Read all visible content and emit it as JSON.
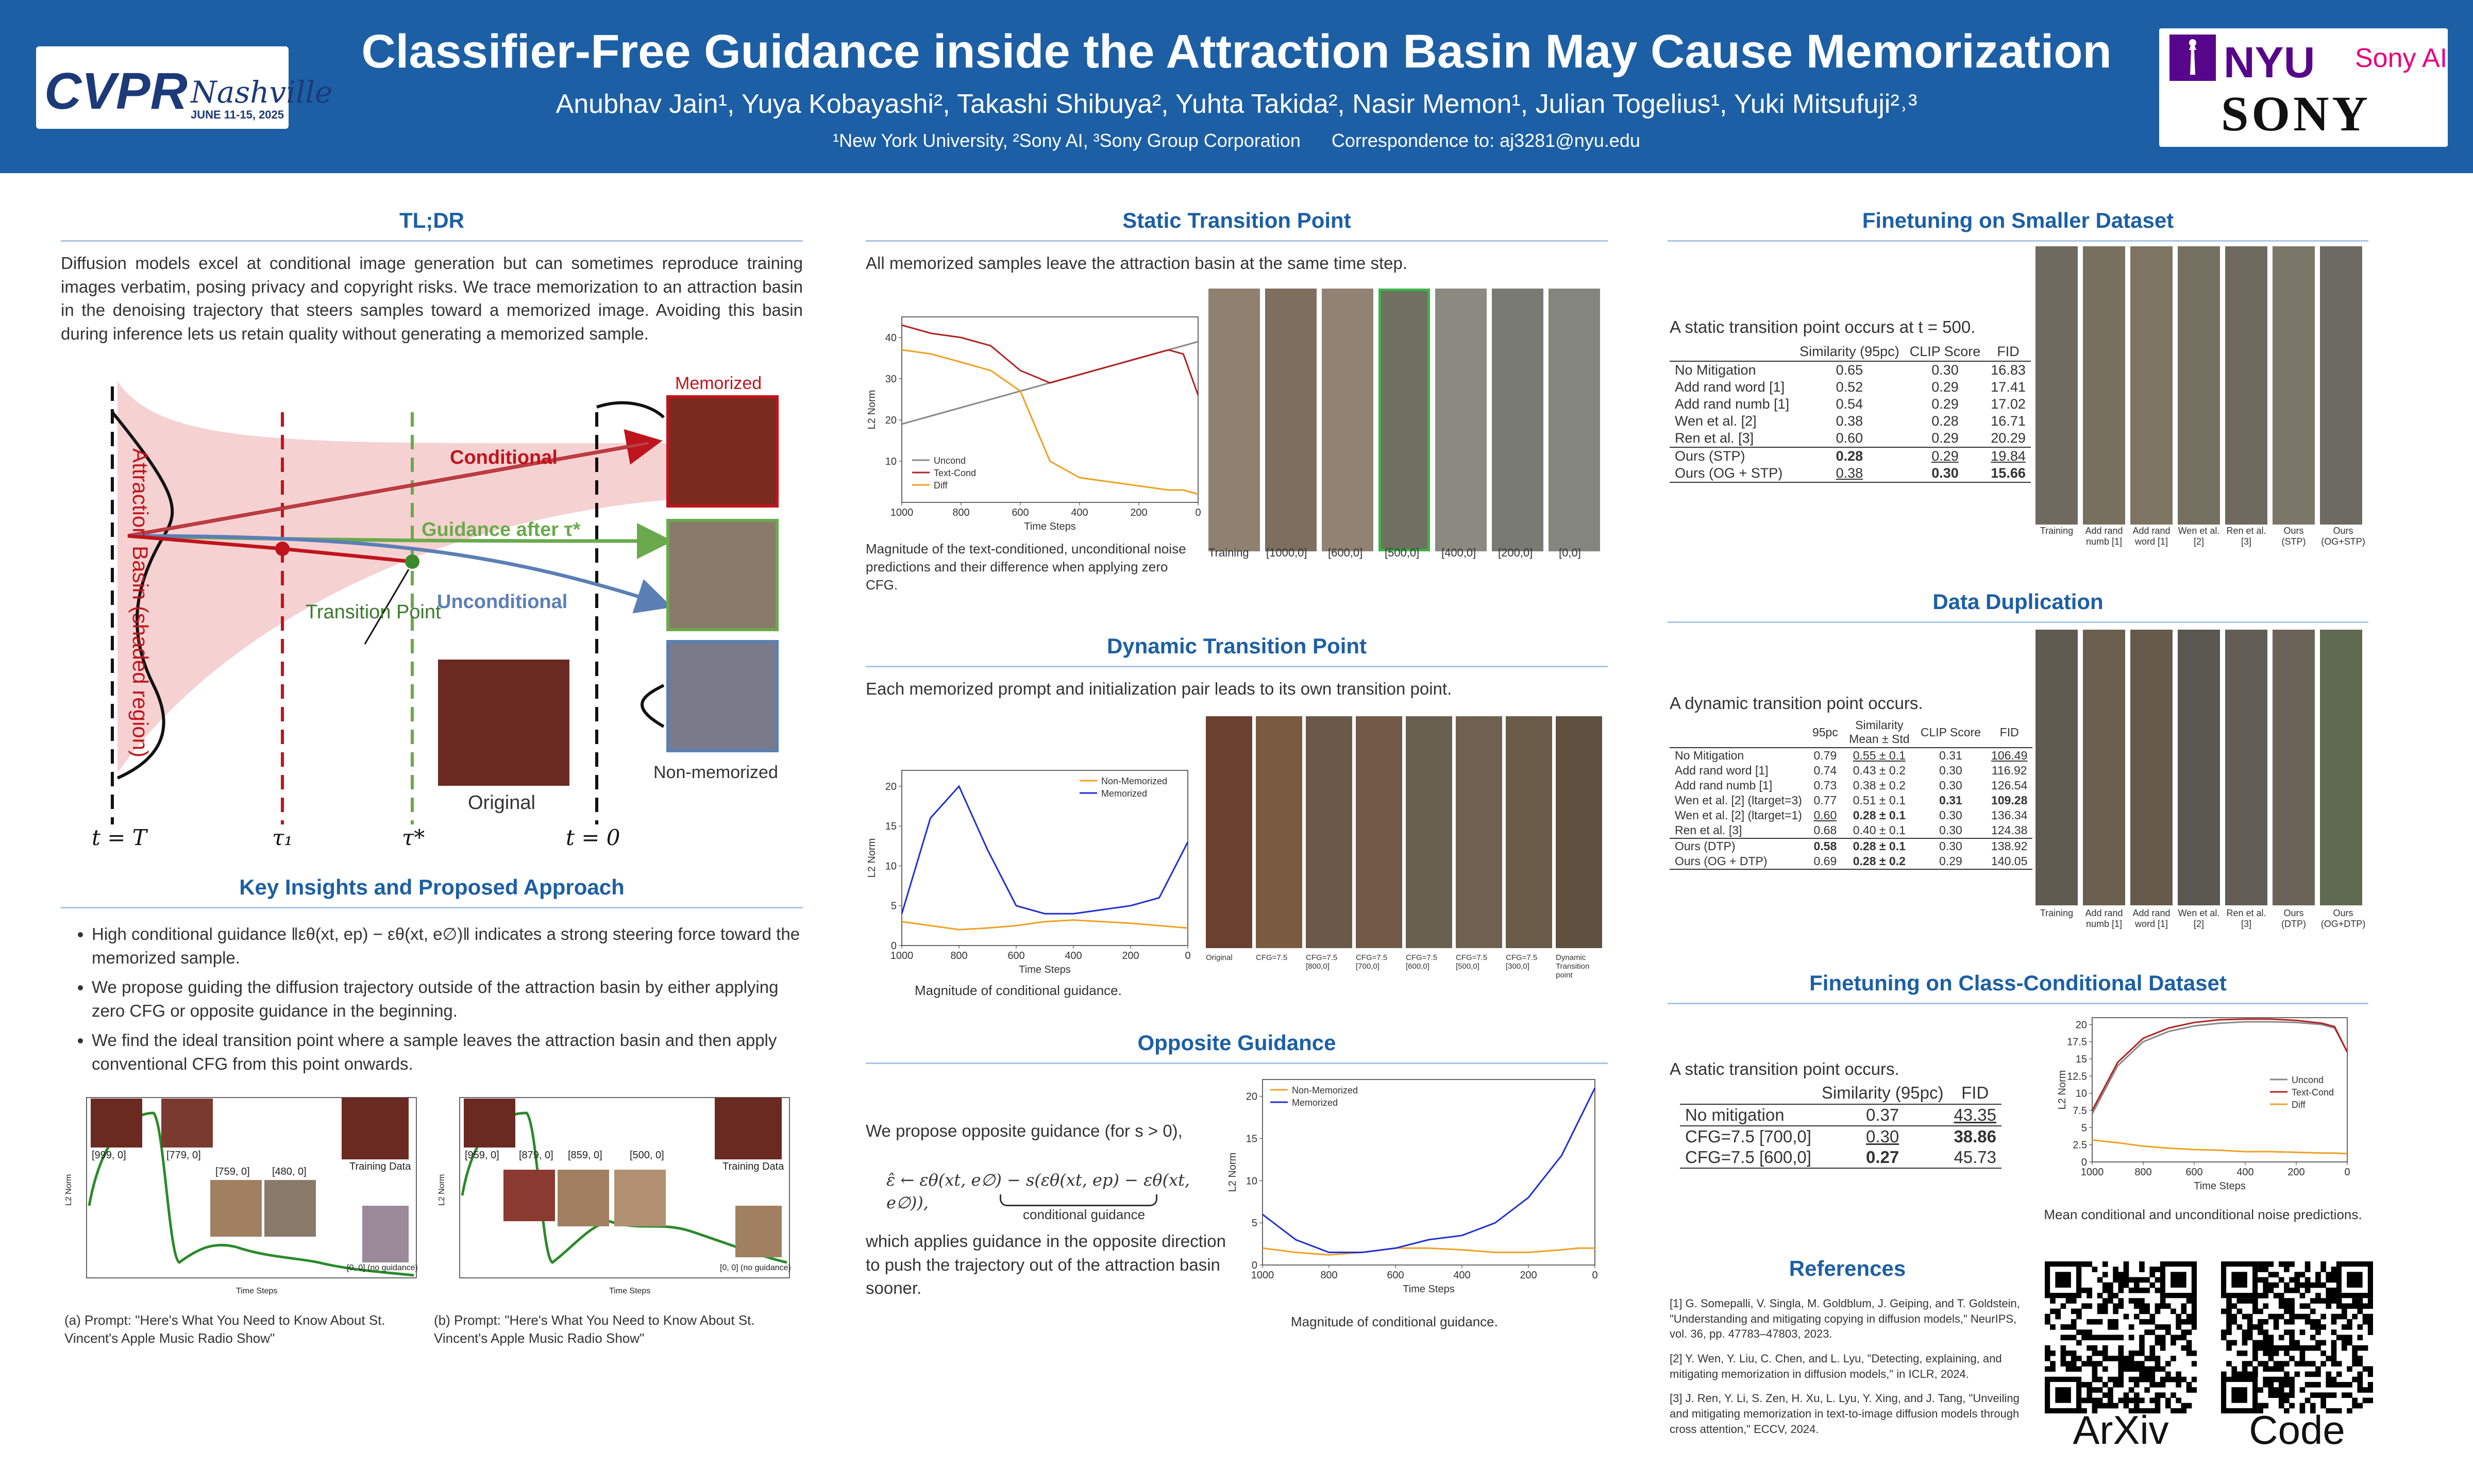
{
  "header": {
    "title": "Classifier-Free Guidance inside the Attraction Basin May Cause Memorization",
    "authors": "Anubhav Jain¹, Yuya Kobayashi², Takashi Shibuya², Yuhta Takida², Nasir Memon¹, Julian Togelius¹, Yuki Mitsufuji²˒³",
    "affiliations": "¹New York University, ²Sony AI, ³Sony Group Corporation      Correspondence to: aj3281@nyu.edu",
    "cvpr_logo": {
      "text": "CVPR",
      "city": "Nashville",
      "dates": "JUNE 11-15, 2025"
    },
    "nyu_logo": "NYU",
    "sonyai_logo": "Sony AI",
    "sony_logo": "SONY"
  },
  "tldr": {
    "heading": "TL;DR",
    "text": "Diffusion models excel at conditional image generation but can sometimes reproduce training images verbatim, posing privacy and copyright risks. We trace memorization to an attraction basin in the denoising trajectory that steers samples toward a memorized image. Avoiding this basin during inference lets us retain quality without generating a memorized sample."
  },
  "diagram": {
    "basin_label": "Attraction Basin (shaded region)",
    "memorized_label": "Memorized",
    "conditional_label": "Conditional",
    "guidance_after_label": "Guidance after τ*",
    "unconditional_label": "Unconditional",
    "transition_label": "Transition Point",
    "original_label": "Original",
    "nonmem_label": "Non-memorized",
    "t_T": "t = T",
    "tau1": "τ₁",
    "tau_star": "τ*",
    "t_0": "t = 0",
    "colors": {
      "conditional": "#c0141c",
      "guidance_after": "#6aaa4c",
      "unconditional": "#5b7fb5",
      "basin": "#f4c9c9"
    }
  },
  "insights": {
    "heading": "Key Insights and Proposed Approach",
    "items": [
      "High conditional guidance ‖εθ(xt, ep) − εθ(xt, e∅)‖ indicates a strong steering force toward the memorized sample.",
      "We propose guiding the diffusion trajectory outside of the attraction basin by either applying zero CFG or opposite guidance in the beginning.",
      "We find the ideal transition point where a sample leaves the attraction basin and then apply conventional CFG from this point onwards."
    ],
    "fig_a": {
      "caption": "(a) Prompt: \"Here's What You Need to Know About St. Vincent's Apple Music Radio Show\"",
      "labels": [
        "[999, 0]",
        "[779, 0]",
        "[759, 0]",
        "[480, 0]",
        "Training Data",
        "[0, 0] (no guidance)"
      ],
      "xlabel": "Time Steps",
      "ylabel": "L2 Norm"
    },
    "fig_b": {
      "caption": "(b) Prompt: \"Here's What You Need to Know About St. Vincent's Apple Music Radio Show\"",
      "labels": [
        "[959, 0]",
        "[879, 0]",
        "[859, 0]",
        "[500, 0]",
        "Training Data",
        "[0, 0] (no guidance)"
      ],
      "xlabel": "Time Steps",
      "ylabel": "L2 Norm"
    }
  },
  "static": {
    "heading": "Static Transition Point",
    "text": "All memorized samples leave the attraction basin at the same time step.",
    "caption": "Magnitude of the text-conditioned, unconditional noise predictions and their difference when applying zero CFG.",
    "grid_labels": [
      "Training",
      "[1000,0]",
      "[600,0]",
      "[500,0]",
      "[400,0]",
      "[200,0]",
      "[0,0]"
    ]
  },
  "dynamic": {
    "heading": "Dynamic Transition Point",
    "text": "Each memorized prompt and initialization pair leads to its own transition point.",
    "caption": "Magnitude of conditional guidance.",
    "grid_labels": [
      "Original",
      "CFG=7.5",
      "CFG=7.5 [800,0]",
      "CFG=7.5 [700,0]",
      "CFG=7.5 [600,0]",
      "CFG=7.5 [500,0]",
      "CFG=7.5 [300,0]",
      "Dynamic Transition point"
    ]
  },
  "opposite": {
    "heading": "Opposite Guidance",
    "text1": "We propose opposite guidance (for s > 0),",
    "equation": "ε̂ ← εθ(xt, e∅) − s(εθ(xt, ep) − εθ(xt, e∅)),",
    "underbrace": "conditional guidance",
    "text2": "which applies guidance in the opposite direction to push the trajectory out of the attraction basin sooner.",
    "caption": "Magnitude of conditional guidance."
  },
  "finetune_small": {
    "heading": "Finetuning on Smaller Dataset",
    "text": "A static transition point occurs at t = 500.",
    "columns": [
      "",
      "Similarity (95pc)",
      "CLIP Score",
      "FID"
    ],
    "rows": [
      [
        "No Mitigation",
        "0.65",
        "0.30",
        "16.83"
      ],
      [
        "Add rand word [1]",
        "0.52",
        "0.29",
        "17.41"
      ],
      [
        "Add rand numb [1]",
        "0.54",
        "0.29",
        "17.02"
      ],
      [
        "Wen et al. [2]",
        "0.38",
        "0.28",
        "16.71"
      ],
      [
        "Ren et al. [3]",
        "0.60",
        "0.29",
        "20.29"
      ],
      [
        "Ours (STP)",
        "0.28",
        "0.29",
        "19.84"
      ],
      [
        "Ours (OG + STP)",
        "0.38",
        "0.30",
        "15.66"
      ]
    ],
    "grid_labels": [
      "Training",
      "Add rand numb [1]",
      "Add rand word [1]",
      "Wen et al. [2]",
      "Ren et al. [3]",
      "Ours (STP)",
      "Ours (OG+STP)"
    ]
  },
  "duplication": {
    "heading": "Data Duplication",
    "text": "A dynamic transition point occurs.",
    "columns": [
      "",
      "95pc",
      "Similarity Mean ± Std",
      "CLIP Score",
      "FID"
    ],
    "rows": [
      [
        "No Mitigation",
        "0.79",
        "0.55 ± 0.1",
        "0.31",
        "106.49"
      ],
      [
        "Add rand word [1]",
        "0.74",
        "0.43 ± 0.2",
        "0.30",
        "116.92"
      ],
      [
        "Add rand numb [1]",
        "0.73",
        "0.38 ± 0.2",
        "0.30",
        "126.54"
      ],
      [
        "Wen et al. [2] (ltarget=3)",
        "0.77",
        "0.51 ± 0.1",
        "0.31",
        "109.28"
      ],
      [
        "Wen et al. [2] (ltarget=1)",
        "0.60",
        "0.28 ± 0.1",
        "0.30",
        "136.34"
      ],
      [
        "Ren et al. [3]",
        "0.68",
        "0.40 ± 0.1",
        "0.30",
        "124.38"
      ],
      [
        "Ours (DTP)",
        "0.58",
        "0.28 ± 0.1",
        "0.30",
        "138.92"
      ],
      [
        "Ours (OG + DTP)",
        "0.69",
        "0.28 ± 0.2",
        "0.29",
        "140.05"
      ]
    ],
    "grid_labels": [
      "Training",
      "Add rand numb [1]",
      "Add rand word [1]",
      "Wen et al. [2]",
      "Ren et al. [3]",
      "Ours (DTP)",
      "Ours (OG+DTP)"
    ]
  },
  "class_cond": {
    "heading": "Finetuning on Class-Conditional Dataset",
    "text": "A static transition point occurs.",
    "columns": [
      "",
      "Similarity (95pc)",
      "FID"
    ],
    "rows": [
      [
        "No mitigation",
        "0.37",
        "43.35"
      ],
      [
        "CFG=7.5 [700,0]",
        "0.30",
        "38.86"
      ],
      [
        "CFG=7.5 [600,0]",
        "0.27",
        "45.73"
      ]
    ],
    "caption": "Mean conditional and unconditional noise predictions."
  },
  "references": {
    "heading": "References",
    "items": [
      "[1]  G. Somepalli, V. Singla, M. Goldblum, J. Geiping, and T. Goldstein, \"Understanding and mitigating copying in diffusion models,\" NeurIPS, vol. 36, pp. 47783–47803, 2023.",
      "[2]  Y. Wen, Y. Liu, C. Chen, and L. Lyu, \"Detecting, explaining, and mitigating memorization in diffusion models,\" in ICLR, 2024.",
      "[3]  J. Ren, Y. Li, S. Zen, H. Xu, L. Lyu, Y. Xing, and J. Tang, \"Unveiling and mitigating memorization in text-to-image diffusion models through cross attention,\" ECCV, 2024."
    ]
  },
  "qr": {
    "arxiv": "ArXiv",
    "code": "Code"
  },
  "chart_data": [
    {
      "type": "line",
      "id": "static",
      "xlabel": "Time Steps",
      "ylabel": "L2 Norm",
      "xlim": [
        1000,
        0
      ],
      "ylim": [
        0,
        45
      ],
      "xticks": [
        1000,
        800,
        600,
        400,
        200,
        0
      ],
      "yticks": [
        10,
        20,
        30,
        40
      ],
      "legend_position": "bottom-left",
      "x": [
        1000,
        900,
        800,
        700,
        600,
        500,
        400,
        300,
        200,
        150,
        100,
        50,
        0
      ],
      "series": [
        {
          "name": "Uncond",
          "color": "#888888",
          "values": [
            19,
            21,
            23,
            25,
            27,
            29,
            31,
            33,
            35,
            36,
            37,
            38,
            39
          ]
        },
        {
          "name": "Text-Cond",
          "color": "#b22222",
          "values": [
            43,
            41,
            40,
            38,
            32,
            29,
            31,
            33,
            35,
            36,
            37,
            36,
            26
          ]
        },
        {
          "name": "Diff",
          "color": "#f0a020",
          "values": [
            37,
            36,
            34,
            32,
            27,
            10,
            6,
            5,
            4,
            3.5,
            3,
            3,
            2
          ]
        }
      ]
    },
    {
      "type": "line",
      "id": "dynamic",
      "xlabel": "Time Steps",
      "ylabel": "L2 Norm",
      "xlim": [
        1000,
        0
      ],
      "ylim": [
        0,
        22
      ],
      "xticks": [
        1000,
        800,
        600,
        400,
        200,
        0
      ],
      "yticks": [
        0,
        5,
        10,
        15,
        20
      ],
      "legend_position": "top-right",
      "x": [
        1000,
        900,
        800,
        700,
        600,
        500,
        400,
        300,
        200,
        100,
        0
      ],
      "series": [
        {
          "name": "Non-Memorized",
          "color": "#f0a020",
          "values": [
            3,
            2.5,
            2,
            2.2,
            2.5,
            3,
            3.2,
            3,
            2.8,
            2.5,
            2.2
          ]
        },
        {
          "name": "Memorized",
          "color": "#1f2fd0",
          "values": [
            4,
            16,
            20,
            12,
            5,
            4,
            4,
            4.5,
            5,
            6,
            13
          ]
        }
      ]
    },
    {
      "type": "line",
      "id": "opposite",
      "xlabel": "Time Steps",
      "ylabel": "L2 Norm",
      "xlim": [
        1000,
        0
      ],
      "ylim": [
        0,
        22
      ],
      "xticks": [
        1000,
        800,
        600,
        400,
        200,
        0
      ],
      "yticks": [
        0,
        5,
        10,
        15,
        20
      ],
      "legend_position": "top-left",
      "x": [
        1000,
        900,
        800,
        700,
        600,
        500,
        400,
        300,
        200,
        100,
        50,
        0
      ],
      "series": [
        {
          "name": "Non-Memorized",
          "color": "#f0a020",
          "values": [
            2,
            1.5,
            1.2,
            1.5,
            2,
            2,
            1.8,
            1.5,
            1.5,
            1.8,
            2,
            2
          ]
        },
        {
          "name": "Memorized",
          "color": "#1f2fd0",
          "values": [
            6,
            3,
            1.5,
            1.5,
            2,
            3,
            3.5,
            5,
            8,
            13,
            17,
            21
          ]
        }
      ]
    },
    {
      "type": "line",
      "id": "classcond",
      "xlabel": "Time Steps",
      "ylabel": "L2 Norm",
      "xlim": [
        1000,
        0
      ],
      "ylim": [
        0,
        21
      ],
      "xticks": [
        1000,
        800,
        600,
        400,
        200,
        0
      ],
      "yticks": [
        0,
        2.5,
        5,
        7.5,
        10,
        12.5,
        15,
        17.5,
        20
      ],
      "legend_position": "right",
      "x": [
        1000,
        900,
        800,
        700,
        600,
        500,
        400,
        300,
        200,
        100,
        50,
        0
      ],
      "series": [
        {
          "name": "Uncond",
          "color": "#888888",
          "values": [
            7,
            14,
            17.5,
            19,
            19.8,
            20.2,
            20.4,
            20.4,
            20.3,
            20,
            19.5,
            16
          ]
        },
        {
          "name": "Text-Cond",
          "color": "#b22222",
          "values": [
            7.5,
            14.5,
            18,
            19.5,
            20.3,
            20.7,
            20.8,
            20.8,
            20.6,
            20.2,
            19.7,
            16
          ]
        },
        {
          "name": "Diff",
          "color": "#f0a020",
          "values": [
            3.2,
            2.8,
            2.3,
            2,
            1.8,
            1.7,
            1.5,
            1.5,
            1.4,
            1.3,
            1.3,
            1.2
          ]
        }
      ]
    }
  ]
}
